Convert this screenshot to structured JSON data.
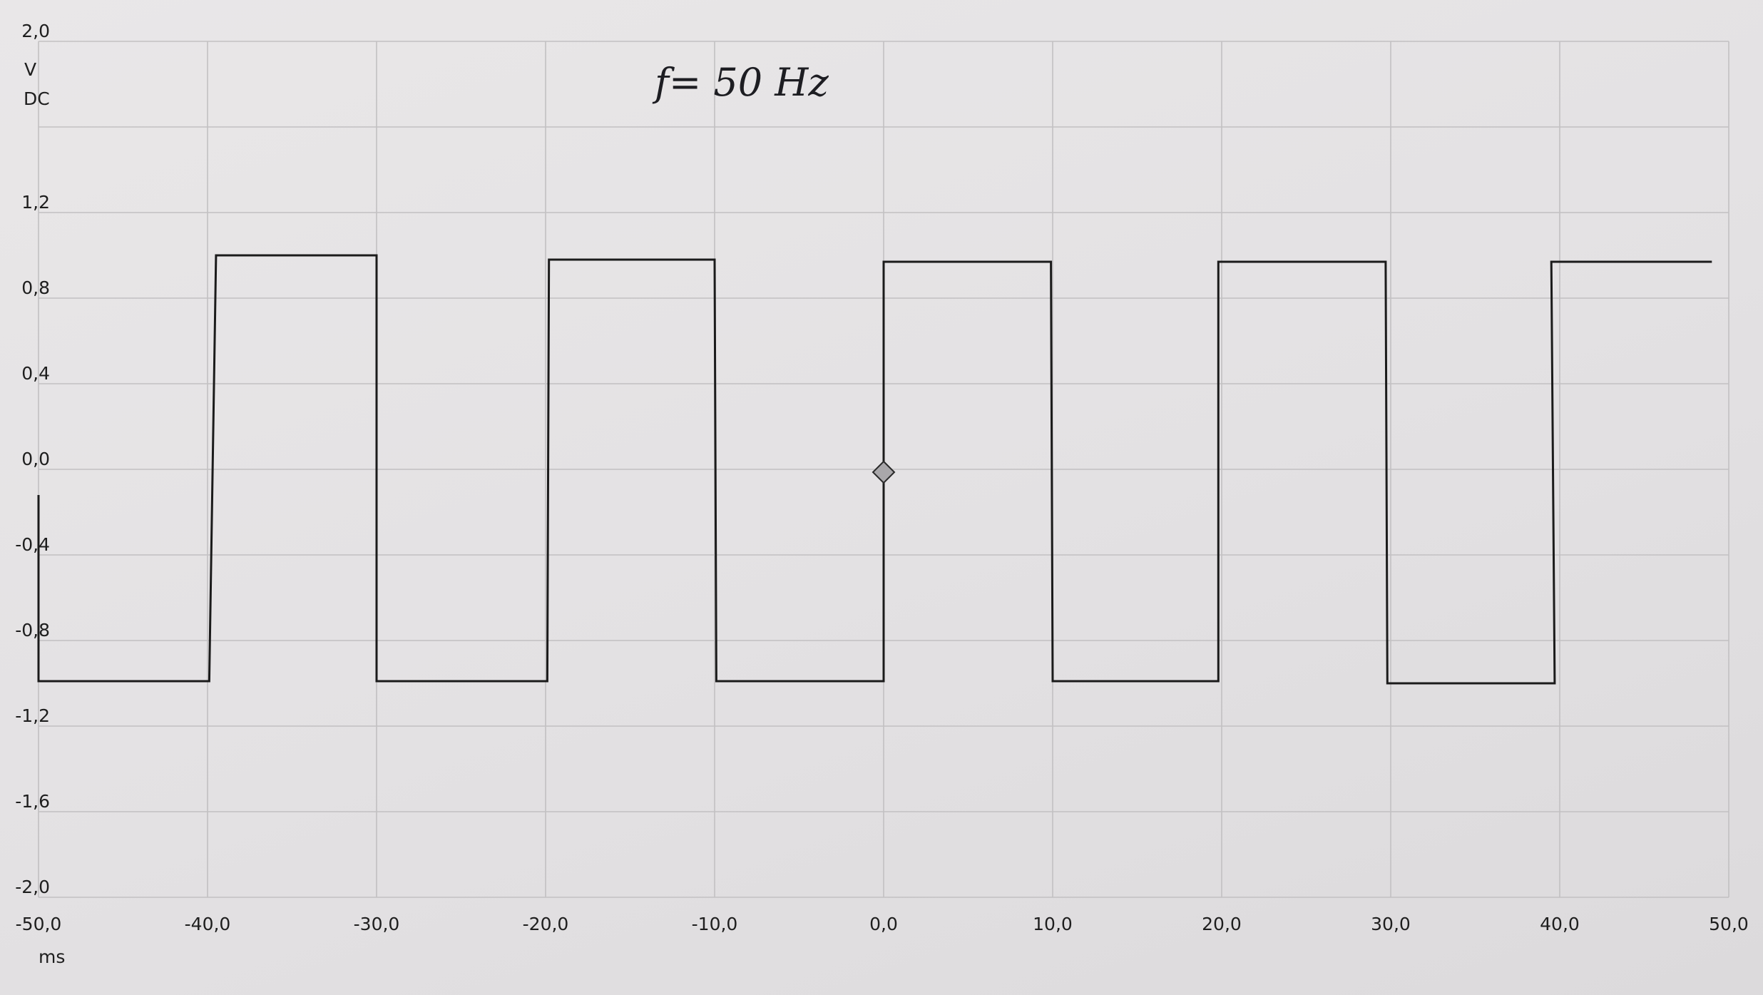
{
  "chart_data": {
    "type": "line",
    "title": "",
    "annotation": "f= 50 Hz",
    "xlabel": "ms",
    "ylabel": "V",
    "ylabel_mode": "DC",
    "xlim": [
      -50,
      50
    ],
    "ylim": [
      -2,
      2
    ],
    "x_ticks": [
      -50,
      -40,
      -30,
      -20,
      -10,
      0,
      10,
      20,
      30,
      40,
      50
    ],
    "x_tick_labels": [
      "-50,0",
      "-40,0",
      "-30,0",
      "-20,0",
      "-10,0",
      "0,0",
      "10,0",
      "20,0",
      "30,0",
      "40,0",
      "50,0"
    ],
    "y_ticks": [
      2.0,
      1.2,
      0.8,
      0.4,
      0.0,
      -0.4,
      -0.8,
      -1.2,
      -1.6,
      -2.0
    ],
    "y_tick_labels": [
      "2,0",
      "1,2",
      "0,8",
      "0,4",
      "0,0",
      "-0,4",
      "-0,8",
      "-1,2",
      "-1,6",
      "-2,0"
    ],
    "grid": true,
    "trigger": {
      "x": 0.0,
      "y": 0.0
    },
    "series": [
      {
        "x": [
          -50.0,
          -50.0,
          -39.9,
          -39.5,
          -30.0,
          -30.0,
          -19.9,
          -19.8,
          -10.0,
          -9.9,
          0.0,
          0.0,
          9.9,
          10.0,
          19.8,
          19.8,
          29.7,
          29.8,
          39.7,
          39.5,
          49.0
        ],
        "y": [
          -0.12,
          -0.99,
          -0.99,
          1.0,
          1.0,
          -0.99,
          -0.99,
          0.98,
          0.98,
          -0.99,
          -0.99,
          0.97,
          0.97,
          -0.99,
          -0.99,
          0.97,
          0.97,
          -1.0,
          -1.0,
          0.97,
          0.97
        ]
      }
    ]
  }
}
